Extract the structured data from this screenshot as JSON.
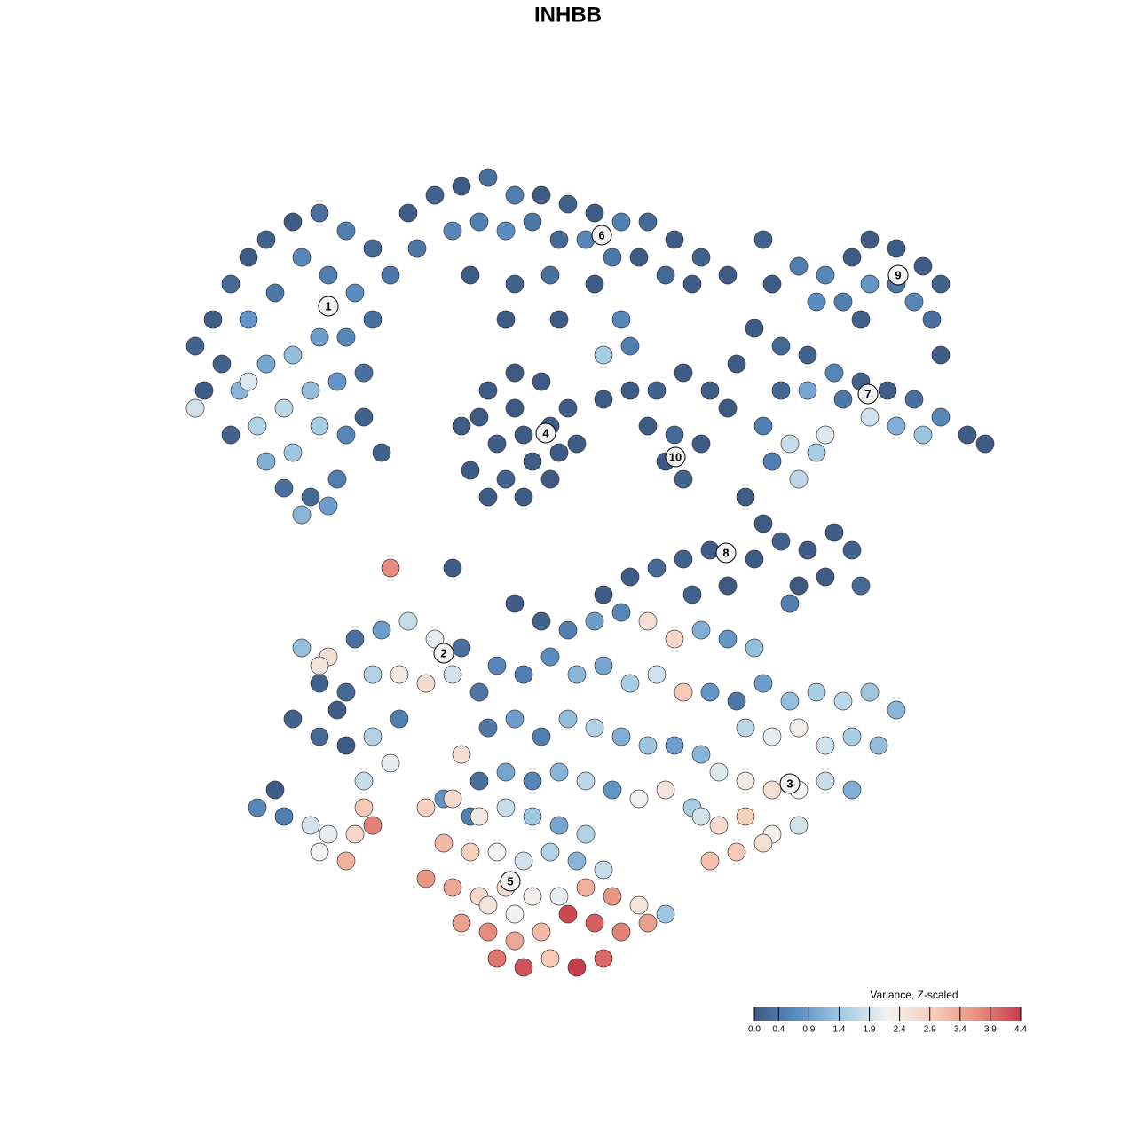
{
  "chart_data": {
    "type": "scatter",
    "title": "INHBB",
    "xlim": [
      0,
      128
    ],
    "ylim": [
      0,
      128
    ],
    "x": [
      22,
      24,
      26,
      28,
      30,
      33,
      36,
      39,
      42,
      44,
      34,
      37,
      40,
      31,
      28,
      25,
      23,
      27,
      30,
      33,
      36,
      39,
      42,
      29,
      32,
      35,
      38,
      41,
      30,
      33,
      36,
      39,
      32,
      35,
      38,
      34,
      37,
      28,
      22,
      26,
      41,
      43,
      46,
      49,
      52,
      55,
      58,
      61,
      64,
      67,
      70,
      73,
      76,
      79,
      82,
      47,
      51,
      54,
      57,
      60,
      63,
      66,
      69,
      72,
      75,
      78,
      53,
      58,
      62,
      67,
      70,
      68,
      71,
      57,
      63,
      52,
      55,
      58,
      61,
      64,
      65,
      62,
      59,
      55,
      53,
      56,
      59,
      62,
      58,
      60,
      57,
      54,
      63,
      68,
      71,
      74,
      77,
      80,
      73,
      76,
      75,
      77,
      79,
      83,
      82,
      87,
      90,
      93,
      96,
      98,
      101,
      104,
      106,
      92,
      95,
      98,
      101,
      103,
      105,
      106,
      97,
      86,
      85,
      88,
      91,
      94,
      97,
      100,
      103,
      106,
      109,
      111,
      91,
      95,
      98,
      101,
      104,
      88,
      86,
      89,
      92,
      90,
      93,
      87,
      84,
      86,
      85,
      88,
      91,
      94,
      96,
      93,
      90,
      97,
      89,
      80,
      77,
      74,
      71,
      68,
      82,
      78,
      34,
      37,
      40,
      43,
      46,
      49,
      52,
      36,
      39,
      42,
      45,
      48,
      51,
      54,
      33,
      36,
      39,
      42,
      45,
      41,
      44,
      38,
      36,
      58,
      61,
      64,
      67,
      70,
      73,
      76,
      79,
      82,
      85,
      56,
      59,
      62,
      65,
      68,
      71,
      74,
      77,
      80,
      83,
      55,
      58,
      61,
      64,
      67,
      70,
      73,
      76,
      79,
      54,
      57,
      60,
      63,
      66,
      69,
      72,
      52,
      53,
      50,
      86,
      89,
      92,
      95,
      98,
      101,
      84,
      87,
      90,
      93,
      96,
      99,
      81,
      84,
      87,
      90,
      93,
      96,
      78,
      81,
      84,
      87,
      90,
      80,
      83,
      86,
      79,
      75,
      48,
      51,
      54,
      57,
      60,
      63,
      66,
      50,
      53,
      56,
      59,
      62,
      65,
      68,
      48,
      51,
      54,
      57,
      60,
      63,
      66,
      69,
      72,
      75,
      52,
      55,
      58,
      61,
      64,
      67,
      70,
      73,
      56,
      59,
      62,
      65,
      68,
      55,
      58,
      29,
      32,
      35,
      37,
      36,
      39,
      40,
      42,
      41,
      44,
      51,
      31
    ],
    "y": [
      89,
      92,
      96,
      99,
      101,
      103,
      104,
      102,
      100,
      97,
      99,
      97,
      95,
      95,
      92,
      87,
      84,
      84,
      87,
      88,
      90,
      90,
      92,
      80,
      82,
      84,
      85,
      86,
      76,
      77,
      80,
      79,
      73,
      72,
      74,
      70,
      71,
      85,
      82,
      79,
      81,
      77,
      104,
      106,
      107,
      108,
      106,
      106,
      105,
      104,
      103,
      103,
      101,
      99,
      97,
      100,
      102,
      103,
      102,
      103,
      101,
      101,
      99,
      99,
      97,
      96,
      97,
      96,
      97,
      96,
      92,
      88,
      89,
      92,
      92,
      80,
      84,
      86,
      85,
      82,
      78,
      74,
      72,
      72,
      75,
      78,
      79,
      80,
      82,
      76,
      74,
      81,
      77,
      83,
      84,
      84,
      86,
      84,
      80,
      79,
      76,
      74,
      78,
      87,
      82,
      96,
      98,
      97,
      99,
      101,
      100,
      98,
      96,
      94,
      94,
      96,
      96,
      94,
      92,
      88,
      92,
      101,
      91,
      89,
      88,
      86,
      85,
      84,
      83,
      81,
      79,
      78,
      84,
      83,
      81,
      80,
      79,
      84,
      80,
      78,
      77,
      74,
      79,
      76,
      72,
      69,
      65,
      67,
      66,
      68,
      66,
      63,
      62,
      62,
      60,
      66,
      65,
      64,
      63,
      61,
      62,
      61,
      55,
      54,
      56,
      57,
      58,
      56,
      55,
      51,
      50,
      52,
      52,
      51,
      52,
      50,
      47,
      45,
      44,
      45,
      47,
      40,
      42,
      48,
      53,
      60,
      58,
      57,
      58,
      59,
      58,
      56,
      57,
      56,
      55,
      53,
      52,
      54,
      52,
      53,
      51,
      52,
      50,
      50,
      49,
      46,
      47,
      45,
      47,
      46,
      45,
      44,
      44,
      43,
      40,
      41,
      40,
      41,
      40,
      39,
      38,
      43,
      36,
      38,
      51,
      49,
      50,
      49,
      50,
      48,
      46,
      45,
      46,
      44,
      45,
      44,
      41,
      40,
      39,
      39,
      40,
      39,
      37,
      35,
      36,
      34,
      35,
      31,
      32,
      33,
      36,
      39,
      37,
      38,
      36,
      37,
      36,
      35,
      34,
      33,
      32,
      32,
      31,
      32,
      31,
      30,
      29,
      28,
      27,
      28,
      27,
      27,
      28,
      27,
      26,
      25,
      24,
      23,
      22,
      23,
      25,
      24,
      23,
      24,
      20,
      19,
      20,
      19,
      20,
      26,
      25,
      37,
      36,
      35,
      34,
      32,
      31,
      34,
      35,
      37,
      64,
      64,
      39
    ],
    "values": [
      0.1,
      0,
      0.2,
      0,
      0.1,
      0,
      0.3,
      0.5,
      0.2,
      0.4,
      0.6,
      0.5,
      0.7,
      0.4,
      0.8,
      0.1,
      0,
      1.2,
      1.0,
      1.3,
      0.9,
      0.6,
      0.3,
      1.6,
      1.7,
      1.3,
      0.8,
      0.3,
      1.1,
      1.4,
      1.5,
      0.6,
      0.3,
      0.2,
      0.5,
      1.2,
      0.9,
      2.0,
      1.9,
      0.1,
      0.1,
      0.1,
      0,
      0.1,
      0,
      0.3,
      0.5,
      0,
      0.1,
      0,
      0.5,
      0.2,
      0,
      0.1,
      0,
      0.4,
      0.6,
      0.5,
      0.7,
      0.4,
      0.2,
      0.6,
      0.4,
      0,
      0.2,
      0,
      0,
      0.1,
      0.3,
      0,
      0.6,
      1.5,
      0.5,
      0,
      0,
      0,
      0,
      0,
      0,
      0,
      0,
      0,
      0,
      0,
      0,
      0,
      0,
      0,
      0,
      0,
      0.1,
      0,
      0,
      0,
      0,
      0.1,
      0,
      0,
      0,
      0.2,
      0,
      0.1,
      0,
      0,
      0,
      0,
      0.5,
      0.6,
      0,
      0,
      0,
      0,
      0.1,
      0.7,
      0.5,
      0.8,
      0.4,
      0.6,
      0.3,
      0,
      0.1,
      0.1,
      0,
      0.2,
      0.1,
      0.6,
      0.1,
      0,
      0.3,
      0.6,
      0,
      0,
      1.0,
      0.4,
      1.9,
      1.1,
      1.4,
      0.2,
      0.5,
      1.8,
      1.5,
      1.7,
      2.0,
      0.5,
      0,
      0,
      0,
      0.1,
      0,
      0,
      0.1,
      0,
      0,
      0.2,
      0.5,
      0,
      0.1,
      0.2,
      0,
      0,
      0,
      0.1,
      1.3,
      2.6,
      0.3,
      0.9,
      1.8,
      2.1,
      0.3,
      0.1,
      0.2,
      1.6,
      2.4,
      2.7,
      1.9,
      0.4,
      0.1,
      0.2,
      0,
      1.6,
      0.5,
      1.8,
      2.1,
      0,
      2.5,
      0,
      0.1,
      0.5,
      0.9,
      0.6,
      2.6,
      2.8,
      1.1,
      0.8,
      1.3,
      0.6,
      0.5,
      0.7,
      1.2,
      1.0,
      1.5,
      1.9,
      3.0,
      0.8,
      0.4,
      0.4,
      0.9,
      0.5,
      1.3,
      1.6,
      1.1,
      1.4,
      0.9,
      1.2,
      0.3,
      1.0,
      0.6,
      1.2,
      1.7,
      0.8,
      2.2,
      2.6,
      0.5,
      0.8,
      0.9,
      1.3,
      1.5,
      1.7,
      1.4,
      1.2,
      1.7,
      2.1,
      2.3,
      1.9,
      1.5,
      1.3,
      2.0,
      2.4,
      2.6,
      2.2,
      1.8,
      1.1,
      1.5,
      2.7,
      2.9,
      2.3,
      1.9,
      3.1,
      3.0,
      2.6,
      1.9,
      2.5,
      2.9,
      2.7,
      2.4,
      1.8,
      1.4,
      1.0,
      1.6,
      3.2,
      2.9,
      2.2,
      1.9,
      1.6,
      1.2,
      1.8,
      3.6,
      3.4,
      2.8,
      2.6,
      2.3,
      2.1,
      3.3,
      3.6,
      2.5,
      1.4,
      3.5,
      3.7,
      3.4,
      3.2,
      4.3,
      4.1,
      3.8,
      3.5,
      3.9,
      4.2,
      3.0,
      4.4,
      4.0,
      2.5,
      2.2,
      0.6,
      0.5,
      1.9,
      2.1,
      2.2,
      3.3,
      2.8,
      3.8,
      3.0,
      3.7,
      0,
      0
    ],
    "clusters": [
      {
        "label": "1",
        "x": 37,
        "y": 93.5
      },
      {
        "label": "2",
        "x": 50,
        "y": 54.4
      },
      {
        "label": "3",
        "x": 89,
        "y": 39.7
      },
      {
        "label": "4",
        "x": 61.5,
        "y": 79.2
      },
      {
        "label": "5",
        "x": 57.5,
        "y": 28.7
      },
      {
        "label": "6",
        "x": 67.8,
        "y": 101.5
      },
      {
        "label": "7",
        "x": 97.8,
        "y": 83.6
      },
      {
        "label": "8",
        "x": 81.8,
        "y": 65.7
      },
      {
        "label": "9",
        "x": 101.2,
        "y": 97
      },
      {
        "label": "10",
        "x": 76.1,
        "y": 76.5
      }
    ],
    "colorbar": {
      "title": "Variance, Z-scaled",
      "ticks": [
        {
          "value": 0,
          "label": "0.0"
        },
        0.4,
        0.9,
        1.4,
        1.9,
        2.4,
        2.9,
        3.4,
        3.9,
        4.4
      ],
      "colors": [
        "#3d5b84",
        "#5b8fc4",
        "#a4cce3",
        "#f2f2f2",
        "#f7d0bc",
        "#e8917f",
        "#c93b4c"
      ]
    }
  }
}
